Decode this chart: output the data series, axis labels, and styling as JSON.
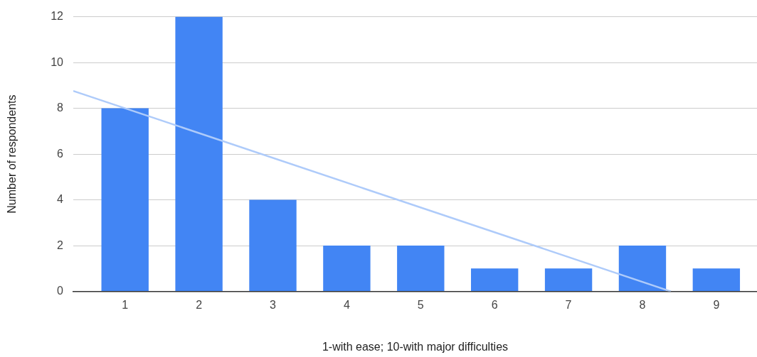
{
  "chart_data": {
    "type": "bar",
    "xlabel": "1-with ease; 10-with major difficulties",
    "ylabel": "Number of respondents",
    "x": [
      1,
      2,
      3,
      4,
      5,
      6,
      7,
      8,
      9
    ],
    "xlim": [
      0.3,
      9.55
    ],
    "xticks": [
      1,
      2,
      3,
      4,
      5,
      6,
      7,
      8,
      9
    ],
    "ylim": [
      0,
      12
    ],
    "yticks": [
      0,
      2,
      4,
      6,
      8,
      10,
      12
    ],
    "grid": "y",
    "legend": false,
    "series": [
      {
        "color": "#4285f4",
        "values": [
          8,
          12,
          4,
          2,
          2,
          1,
          1,
          2,
          1
        ]
      },
      {
        "type": "line",
        "color": "#aecbfa",
        "x": [
          0.3,
          8.385
        ],
        "values": [
          8.76,
          0
        ],
        "marker": "none"
      }
    ]
  }
}
